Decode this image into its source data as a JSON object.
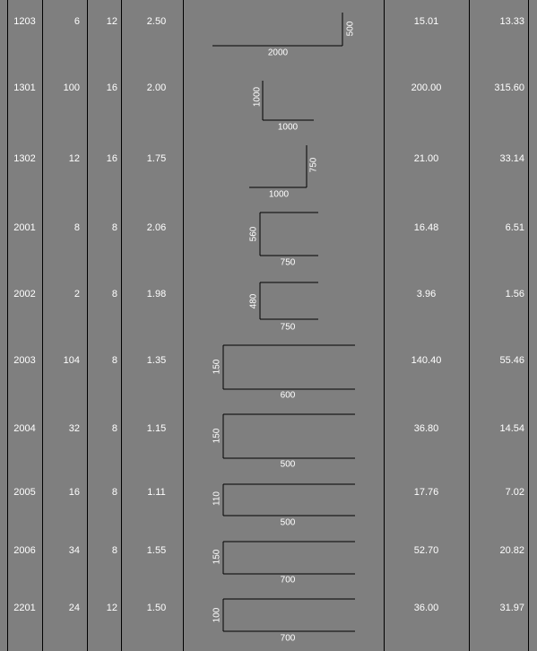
{
  "table": {
    "rows": [
      {
        "mark": "1203",
        "qty": "6",
        "dia": "12",
        "len": "2.50",
        "total_len": "15.01",
        "weight": "13.33",
        "shape": {
          "kind": "hook-right-up",
          "horiz_label": "2000",
          "vert_label": "500"
        }
      },
      {
        "mark": "1301",
        "qty": "100",
        "dia": "16",
        "len": "2.00",
        "total_len": "200.00",
        "weight": "315.60",
        "shape": {
          "kind": "L-left",
          "horiz_label": "1000",
          "vert_label": "1000"
        }
      },
      {
        "mark": "1302",
        "qty": "12",
        "dia": "16",
        "len": "1.75",
        "total_len": "21.00",
        "weight": "33.14",
        "shape": {
          "kind": "hook-right-up",
          "horiz_label": "1000",
          "vert_label": "750"
        }
      },
      {
        "mark": "2001",
        "qty": "8",
        "dia": "8",
        "len": "2.06",
        "total_len": "16.48",
        "weight": "6.51",
        "shape": {
          "kind": "U-open-right",
          "horiz_label": "750",
          "vert_label": "560"
        }
      },
      {
        "mark": "2002",
        "qty": "2",
        "dia": "8",
        "len": "1.98",
        "total_len": "3.96",
        "weight": "1.56",
        "shape": {
          "kind": "U-open-right",
          "horiz_label": "750",
          "vert_label": "480"
        }
      },
      {
        "mark": "2003",
        "qty": "104",
        "dia": "8",
        "len": "1.35",
        "total_len": "140.40",
        "weight": "55.46",
        "shape": {
          "kind": "U-open-right",
          "horiz_label": "600",
          "vert_label": "150"
        }
      },
      {
        "mark": "2004",
        "qty": "32",
        "dia": "8",
        "len": "1.15",
        "total_len": "36.80",
        "weight": "14.54",
        "shape": {
          "kind": "U-open-right",
          "horiz_label": "500",
          "vert_label": "150"
        }
      },
      {
        "mark": "2005",
        "qty": "16",
        "dia": "8",
        "len": "1.11",
        "total_len": "17.76",
        "weight": "7.02",
        "shape": {
          "kind": "U-open-right",
          "horiz_label": "500",
          "vert_label": "110"
        }
      },
      {
        "mark": "2006",
        "qty": "34",
        "dia": "8",
        "len": "1.55",
        "total_len": "52.70",
        "weight": "20.82",
        "shape": {
          "kind": "U-open-right",
          "horiz_label": "700",
          "vert_label": "150"
        }
      },
      {
        "mark": "2201",
        "qty": "24",
        "dia": "12",
        "len": "1.50",
        "total_len": "36.00",
        "weight": "31.97",
        "shape": {
          "kind": "U-open-right",
          "horiz_label": "700",
          "vert_label": "100"
        }
      }
    ]
  },
  "colors": {
    "background": "#7f7f7f",
    "text": "#ffffff",
    "lines": "#000000"
  }
}
